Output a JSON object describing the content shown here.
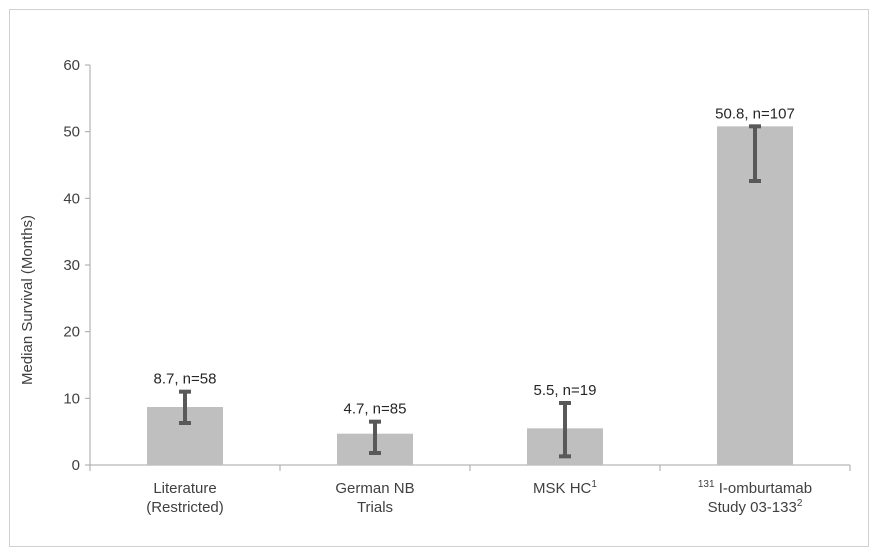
{
  "chart_data": {
    "type": "bar",
    "title": "",
    "xlabel": "",
    "ylabel": "Median Survival (Months)",
    "ylim": [
      0,
      60
    ],
    "yticks": [
      0,
      10,
      20,
      30,
      40,
      50,
      60
    ],
    "grid": false,
    "legend": "none",
    "categories": [
      {
        "lines": [
          [
            "Literature"
          ],
          [
            "(Restricted)"
          ]
        ]
      },
      {
        "lines": [
          [
            "German NB"
          ],
          [
            "Trials"
          ]
        ]
      },
      {
        "lines": [
          [
            "MSK HC",
            "1"
          ]
        ]
      },
      {
        "lines": [
          [
            "131",
            " I-omburtamab"
          ],
          [
            "Study 03-133",
            "2"
          ]
        ]
      }
    ],
    "values": [
      8.7,
      4.7,
      5.5,
      50.8
    ],
    "n": [
      58,
      85,
      19,
      107
    ],
    "data_labels": [
      "8.7, n=58",
      "4.7, n=85",
      "5.5, n=19",
      "50.8, n=107"
    ],
    "error_bars": [
      {
        "low": 6.3,
        "high": 11.0
      },
      {
        "low": 1.8,
        "high": 6.5
      },
      {
        "low": 1.3,
        "high": 9.3
      },
      {
        "low": 42.6,
        "high": 50.8
      }
    ],
    "colors": {
      "bar": "#bfbfbf",
      "error_bar": "#595959",
      "axis": "#a6a6a6"
    }
  }
}
